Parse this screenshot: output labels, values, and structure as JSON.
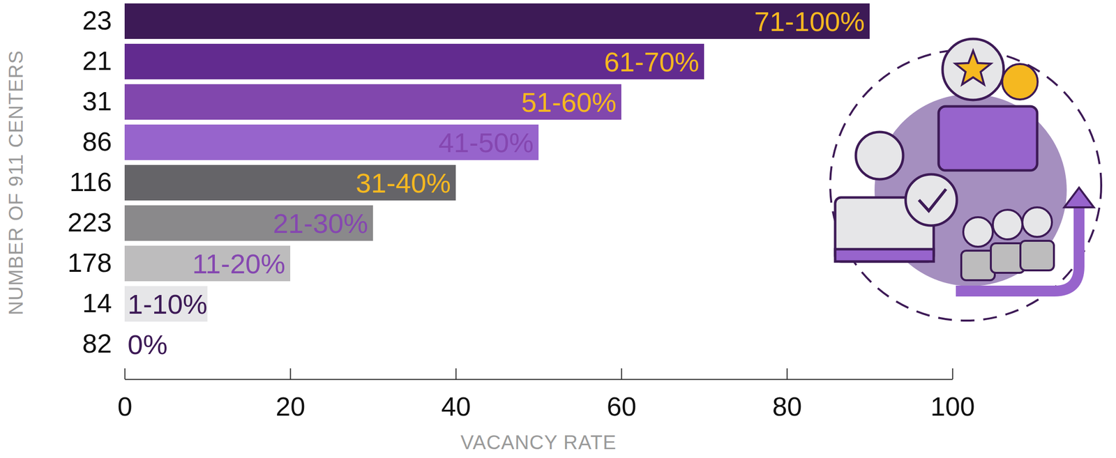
{
  "chart_data": {
    "type": "bar",
    "orientation": "horizontal",
    "categories": [
      "23",
      "21",
      "31",
      "86",
      "116",
      "223",
      "178",
      "14",
      "82"
    ],
    "values": [
      90,
      70,
      60,
      50,
      40,
      30,
      20,
      10,
      0
    ],
    "bar_labels": [
      "71-100%",
      "61-70%",
      "51-60%",
      "41-50%",
      "31-40%",
      "21-30%",
      "11-20%",
      "1-10%",
      "0%"
    ],
    "colors": [
      "#3d1a56",
      "#622b8f",
      "#8147ad",
      "#9764cc",
      "#656468",
      "#8a898b",
      "#bdbcbd",
      "#e6e6e8",
      "#ececec"
    ],
    "xlim": [
      0,
      100
    ],
    "xticks": [
      0,
      20,
      40,
      60,
      80,
      100
    ],
    "xlabel": "VACANCY RATE",
    "ylabel": "NUMBER OF 911 CENTERS",
    "grid": false
  }
}
